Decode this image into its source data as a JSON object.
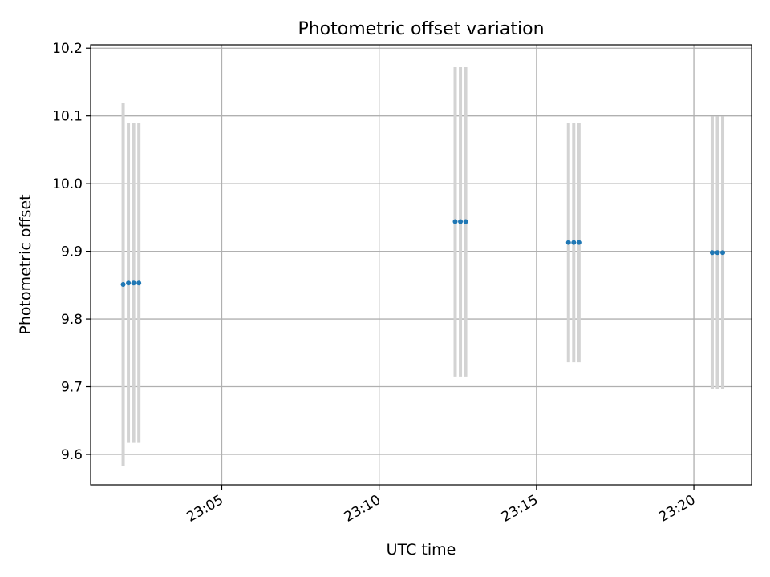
{
  "chart_data": {
    "type": "scatter",
    "title": "Photometric offset variation",
    "xlabel": "UTC time",
    "ylabel": "Photometric offset",
    "x_axis_type": "time",
    "x_date": "23:00-23:22 UTC",
    "xlim": [
      "23:00:50",
      "23:21:50"
    ],
    "ylim": [
      9.555,
      10.205
    ],
    "x_ticks": [
      "23:05",
      "23:10",
      "23:15",
      "23:20"
    ],
    "y_ticks": [
      9.6,
      9.7,
      9.8,
      9.9,
      10.0,
      10.1,
      10.2
    ],
    "y_tick_labels": [
      "9.6",
      "9.7",
      "9.8",
      "9.9",
      "10.0",
      "10.1",
      "10.2"
    ],
    "grid": true,
    "colors": {
      "points": "#1f77b4",
      "error_bars": "#d3d3d3",
      "grid": "#b0b0b0"
    },
    "series": [
      {
        "points": [
          {
            "x": "23:01:52",
            "y": 9.851,
            "yerr": 0.268
          },
          {
            "x": "23:02:02",
            "y": 9.853,
            "yerr": 0.236
          },
          {
            "x": "23:02:12",
            "y": 9.853,
            "yerr": 0.236
          },
          {
            "x": "23:02:22",
            "y": 9.853,
            "yerr": 0.236
          },
          {
            "x": "23:12:25",
            "y": 9.944,
            "yerr": 0.229
          },
          {
            "x": "23:12:35",
            "y": 9.944,
            "yerr": 0.229
          },
          {
            "x": "23:12:45",
            "y": 9.944,
            "yerr": 0.229
          },
          {
            "x": "23:16:01",
            "y": 9.913,
            "yerr": 0.177
          },
          {
            "x": "23:16:11",
            "y": 9.913,
            "yerr": 0.177
          },
          {
            "x": "23:16:21",
            "y": 9.913,
            "yerr": 0.177
          },
          {
            "x": "23:20:35",
            "y": 9.898,
            "yerr": 0.201
          },
          {
            "x": "23:20:45",
            "y": 9.898,
            "yerr": 0.201
          },
          {
            "x": "23:20:55",
            "y": 9.898,
            "yerr": 0.201
          }
        ]
      }
    ]
  }
}
